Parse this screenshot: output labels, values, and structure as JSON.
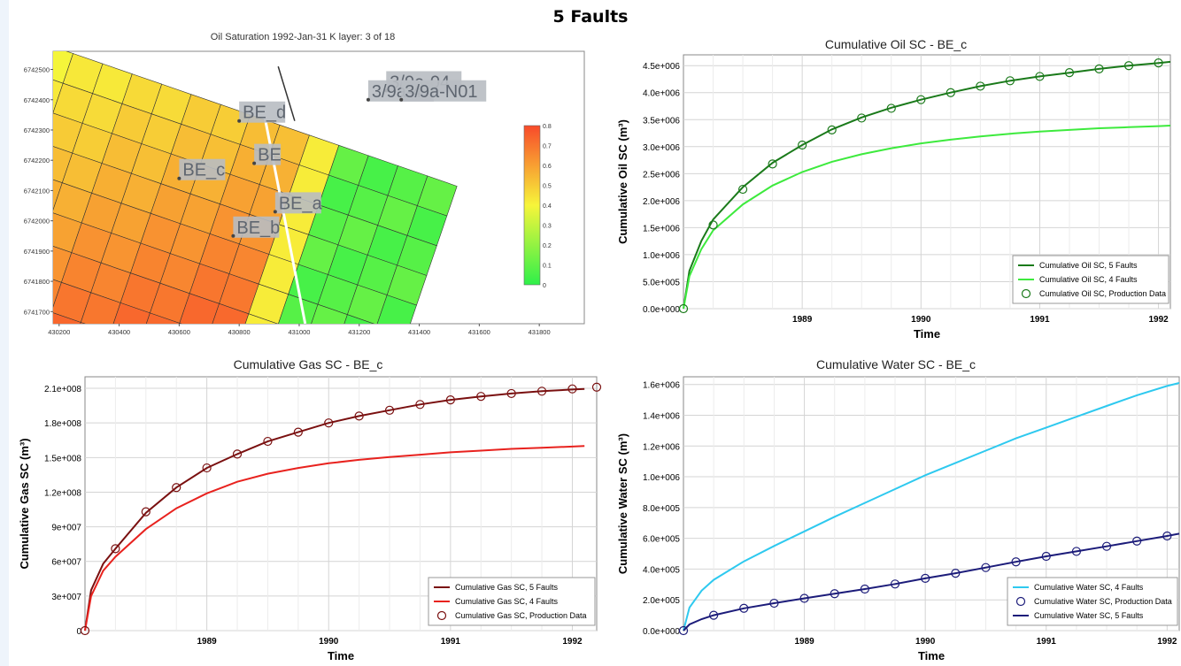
{
  "page_title": "5 Faults",
  "chart_data": [
    {
      "type": "heatmap",
      "title": "Oil Saturation  1992-Jan-31   K layer: 3 of 18",
      "x_ticks": [
        430200,
        430400,
        430600,
        430800,
        431000,
        431200,
        431400,
        431600,
        431800
      ],
      "y_ticks": [
        6741700,
        6741800,
        6741900,
        6742000,
        6742100,
        6742200,
        6742300,
        6742400,
        6742500
      ],
      "xlim": [
        430180,
        431950
      ],
      "ylim": [
        6741660,
        6742560
      ],
      "colorbar": {
        "ticks": [
          0,
          0.1,
          0.2,
          0.3,
          0.4,
          0.5,
          0.6,
          0.7,
          0.8
        ],
        "range": [
          0,
          0.8
        ],
        "low_color": "#2ef04a",
        "mid_color": "#f7f53a",
        "high_color": "#f84a2a"
      },
      "well_labels": [
        {
          "text": "BE_d",
          "x": 430800,
          "y": 6742330
        },
        {
          "text": "BE_c",
          "x": 430600,
          "y": 6742140
        },
        {
          "text": "BE",
          "x": 430850,
          "y": 6742190
        },
        {
          "text": "BE_a",
          "x": 430920,
          "y": 6742030
        },
        {
          "text": "BE_b",
          "x": 430780,
          "y": 6741950
        },
        {
          "text": "3/9a-04",
          "x": 431290,
          "y": 6742430
        },
        {
          "text": "3/9a-4",
          "x": 431230,
          "y": 6742400
        },
        {
          "text": "3/9a-N01",
          "x": 431340,
          "y": 6742400
        }
      ]
    },
    {
      "type": "line",
      "title": "Cumulative Oil SC - BE_c",
      "xlabel": "Time",
      "ylabel": "Cumulative Oil SC (m³)",
      "xlim": [
        1988.0,
        1992.1
      ],
      "ylim": [
        0,
        4700000
      ],
      "x_ticks": [
        1989,
        1990,
        1991,
        1992
      ],
      "y_ticks": [
        0,
        500000,
        1000000,
        1500000,
        2000000,
        2500000,
        3000000,
        3500000,
        4000000,
        4500000
      ],
      "y_tick_labels": [
        "0.0e+000",
        "5.0e+005",
        "1.0e+006",
        "1.5e+006",
        "2.0e+006",
        "2.5e+006",
        "3.0e+006",
        "3.5e+006",
        "4.0e+006",
        "4.5e+006"
      ],
      "legend_position": "bottom-right",
      "series": [
        {
          "name": "Cumulative Oil SC, 5 Faults",
          "style": "line",
          "color": "#1a7a1a",
          "x": [
            1988.0,
            1988.05,
            1988.15,
            1988.25,
            1988.5,
            1988.75,
            1989.0,
            1989.25,
            1989.5,
            1989.75,
            1990.0,
            1990.25,
            1990.5,
            1990.75,
            1991.0,
            1991.25,
            1991.5,
            1991.75,
            1992.0,
            1992.1
          ],
          "y": [
            0,
            700000,
            1250000,
            1650000,
            2250000,
            2700000,
            3030000,
            3320000,
            3540000,
            3720000,
            3870000,
            4000000,
            4120000,
            4220000,
            4300000,
            4370000,
            4440000,
            4500000,
            4550000,
            4570000
          ]
        },
        {
          "name": "Cumulative Oil SC, 4 Faults",
          "style": "line",
          "color": "#3dea3d",
          "x": [
            1988.0,
            1988.05,
            1988.15,
            1988.25,
            1988.5,
            1988.75,
            1989.0,
            1989.25,
            1989.5,
            1989.75,
            1990.0,
            1990.25,
            1990.5,
            1990.75,
            1991.0,
            1991.25,
            1991.5,
            1991.75,
            1992.0,
            1992.1
          ],
          "y": [
            0,
            600000,
            1100000,
            1450000,
            1930000,
            2280000,
            2530000,
            2720000,
            2860000,
            2970000,
            3060000,
            3130000,
            3190000,
            3240000,
            3280000,
            3310000,
            3340000,
            3360000,
            3380000,
            3390000
          ]
        },
        {
          "name": "Cumulative Oil SC, Production Data",
          "style": "marker",
          "color": "#1a7a1a",
          "x": [
            1988.0,
            1988.25,
            1988.5,
            1988.75,
            1989.0,
            1989.25,
            1989.5,
            1989.75,
            1990.0,
            1990.25,
            1990.5,
            1990.75,
            1991.0,
            1991.25,
            1991.5,
            1991.75,
            1992.0
          ],
          "y": [
            0,
            1550000,
            2210000,
            2680000,
            3030000,
            3310000,
            3530000,
            3710000,
            3870000,
            4000000,
            4120000,
            4220000,
            4300000,
            4370000,
            4440000,
            4500000,
            4550000
          ]
        }
      ]
    },
    {
      "type": "line",
      "title": "Cumulative Gas SC - BE_c",
      "xlabel": "Time",
      "ylabel": "Cumulative Gas SC (m³)",
      "xlim": [
        1988.0,
        1992.2
      ],
      "ylim": [
        0,
        220000000
      ],
      "x_ticks": [
        1989,
        1990,
        1991,
        1992
      ],
      "y_ticks": [
        0,
        30000000,
        60000000,
        90000000,
        120000000,
        150000000,
        180000000,
        210000000
      ],
      "y_tick_labels": [
        "0",
        "3e+007",
        "6e+007",
        "9e+007",
        "1.2e+008",
        "1.5e+008",
        "1.8e+008",
        "2.1e+008"
      ],
      "legend_position": "bottom-right",
      "series": [
        {
          "name": "Cumulative Gas SC, 5 Faults",
          "style": "line",
          "color": "#7a1010",
          "x": [
            1988.0,
            1988.05,
            1988.15,
            1988.25,
            1988.5,
            1988.75,
            1989.0,
            1989.25,
            1989.5,
            1989.75,
            1990.0,
            1990.25,
            1990.5,
            1990.75,
            1991.0,
            1991.25,
            1991.5,
            1991.75,
            1992.0,
            1992.1
          ],
          "y": [
            0,
            35000000,
            58000000,
            71000000,
            102000000,
            124000000,
            141000000,
            153000000,
            164000000,
            172000000,
            180000000,
            186000000,
            191000000,
            196000000,
            200000000,
            203000000,
            205500000,
            207500000,
            209000000,
            209500000
          ]
        },
        {
          "name": "Cumulative Gas SC, 4 Faults",
          "style": "line",
          "color": "#e8221e",
          "x": [
            1988.0,
            1988.05,
            1988.15,
            1988.25,
            1988.5,
            1988.75,
            1989.0,
            1989.25,
            1989.5,
            1989.75,
            1990.0,
            1990.25,
            1990.5,
            1990.75,
            1991.0,
            1991.25,
            1991.5,
            1991.75,
            1992.0,
            1992.1
          ],
          "y": [
            0,
            30000000,
            52000000,
            64000000,
            88000000,
            106000000,
            119000000,
            129000000,
            136000000,
            141000000,
            145000000,
            148000000,
            150500000,
            152500000,
            154500000,
            156000000,
            157500000,
            158500000,
            159500000,
            160000000
          ]
        },
        {
          "name": "Cumulative Gas SC, Production Data",
          "style": "marker",
          "color": "#7a1010",
          "x": [
            1988.0,
            1988.25,
            1988.5,
            1988.75,
            1989.0,
            1989.25,
            1989.5,
            1989.75,
            1990.0,
            1990.25,
            1990.5,
            1990.75,
            1991.0,
            1991.25,
            1991.5,
            1991.75,
            1992.0,
            1992.2
          ],
          "y": [
            0,
            71000000,
            103000000,
            124000000,
            141000000,
            153000000,
            164000000,
            172000000,
            180000000,
            186000000,
            191000000,
            196000000,
            200000000,
            203000000,
            205500000,
            207500000,
            209500000,
            211000000
          ]
        }
      ]
    },
    {
      "type": "line",
      "title": "Cumulative Water SC - BE_c",
      "xlabel": "Time",
      "ylabel": "Cumulative Water SC (m³)",
      "xlim": [
        1988.0,
        1992.1
      ],
      "ylim": [
        0,
        1650000
      ],
      "x_ticks": [
        1989,
        1990,
        1991,
        1992
      ],
      "y_ticks": [
        0,
        200000,
        400000,
        600000,
        800000,
        1000000,
        1200000,
        1400000,
        1600000
      ],
      "y_tick_labels": [
        "0.0e+000",
        "2.0e+005",
        "4.0e+005",
        "6.0e+005",
        "8.0e+005",
        "1.0e+006",
        "1.2e+006",
        "1.4e+006",
        "1.6e+006"
      ],
      "legend_position": "bottom-right",
      "series": [
        {
          "name": "Cumulative Water SC, 4 Faults",
          "style": "line",
          "color": "#2ec9ef",
          "x": [
            1988.0,
            1988.05,
            1988.15,
            1988.25,
            1988.5,
            1988.75,
            1989.0,
            1989.25,
            1989.5,
            1989.75,
            1990.0,
            1990.25,
            1990.5,
            1990.75,
            1991.0,
            1991.25,
            1991.5,
            1991.75,
            1992.0,
            1992.1
          ],
          "y": [
            0,
            150000,
            260000,
            330000,
            450000,
            550000,
            645000,
            740000,
            830000,
            920000,
            1010000,
            1090000,
            1170000,
            1250000,
            1320000,
            1390000,
            1460000,
            1530000,
            1590000,
            1610000
          ]
        },
        {
          "name": "Cumulative Water SC, Production Data",
          "style": "marker",
          "color": "#1c1c7a",
          "x": [
            1988.0,
            1988.25,
            1988.5,
            1988.75,
            1989.0,
            1989.25,
            1989.5,
            1989.75,
            1990.0,
            1990.25,
            1990.5,
            1990.75,
            1991.0,
            1991.25,
            1991.5,
            1991.75,
            1992.0
          ],
          "y": [
            0,
            100000,
            145000,
            178000,
            210000,
            240000,
            270000,
            303000,
            340000,
            373000,
            410000,
            447000,
            483000,
            515000,
            548000,
            582000,
            615000
          ]
        },
        {
          "name": "Cumulative Water SC, 5 Faults",
          "style": "line",
          "color": "#1c1c7a",
          "x": [
            1988.0,
            1988.05,
            1988.15,
            1988.25,
            1988.5,
            1988.75,
            1989.0,
            1989.25,
            1989.5,
            1989.75,
            1990.0,
            1990.25,
            1990.5,
            1990.75,
            1991.0,
            1991.25,
            1991.5,
            1991.75,
            1992.0,
            1992.1
          ],
          "y": [
            0,
            40000,
            75000,
            100000,
            145000,
            178000,
            210000,
            240000,
            270000,
            303000,
            340000,
            373000,
            410000,
            447000,
            483000,
            515000,
            548000,
            582000,
            615000,
            630000
          ]
        }
      ]
    }
  ]
}
